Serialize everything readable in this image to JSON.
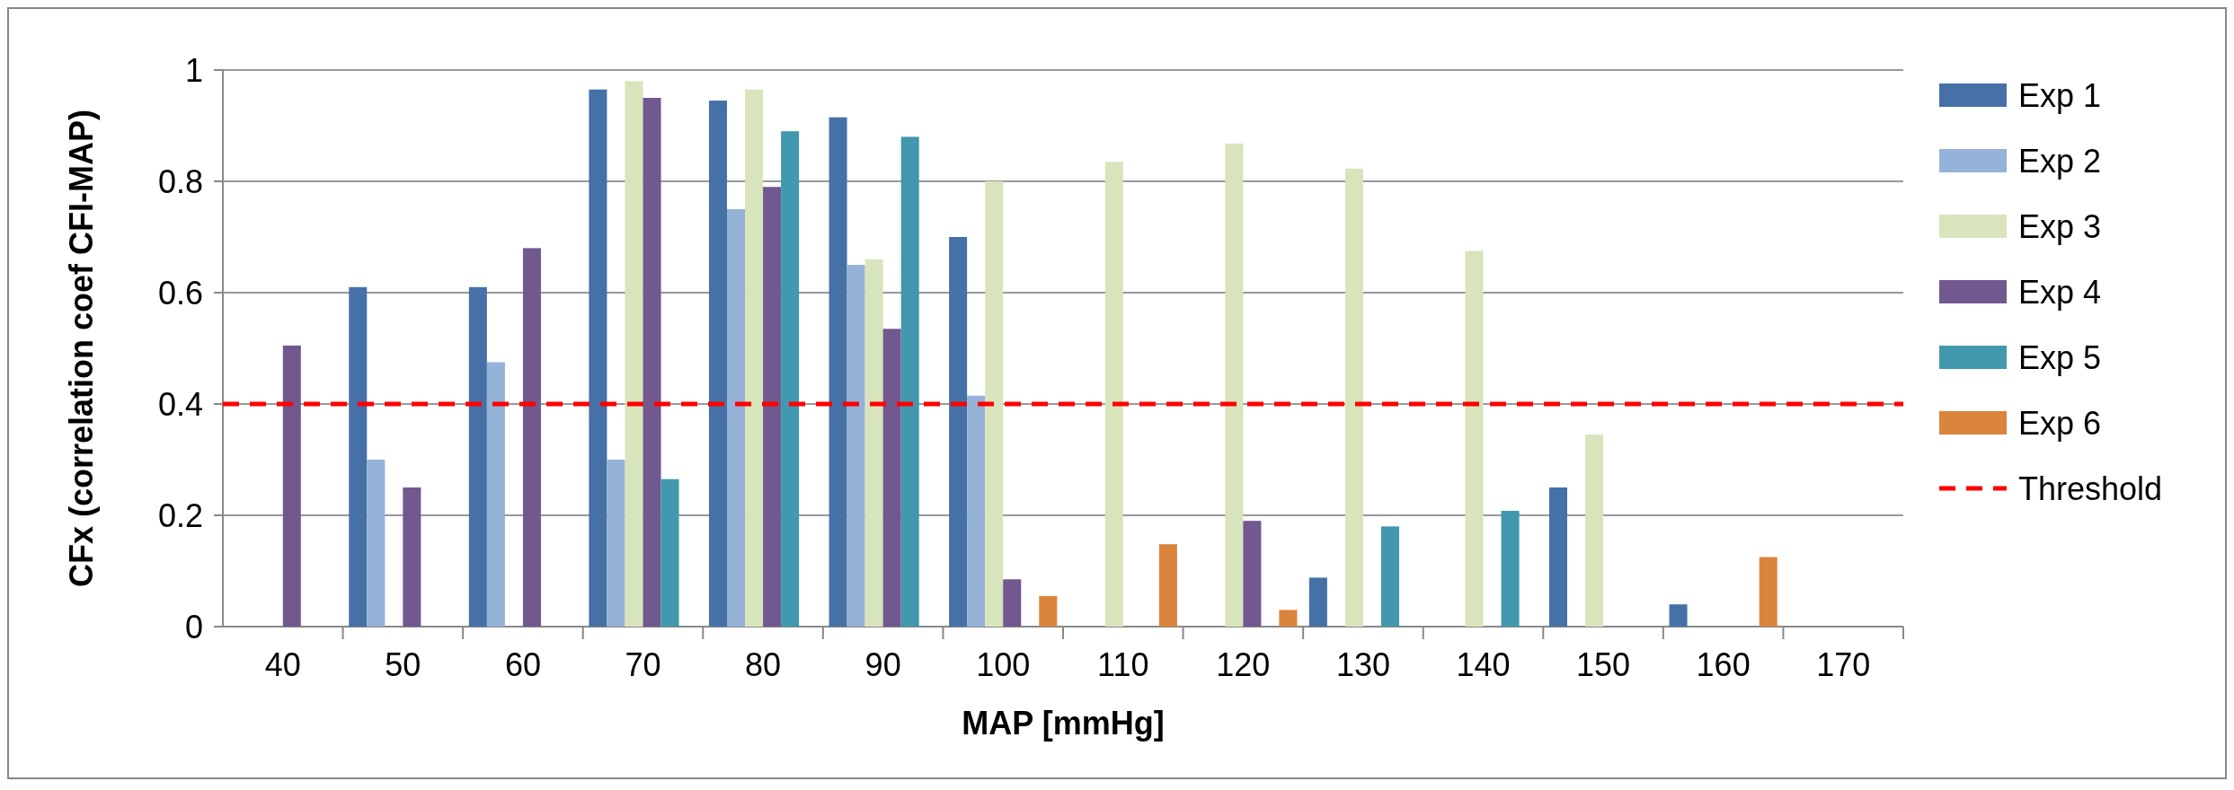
{
  "chart_data": {
    "type": "bar",
    "xlabel": "MAP [mmHg]",
    "ylabel": "CFx (correlation coef CFI-MAP)",
    "categories": [
      "40",
      "50",
      "60",
      "70",
      "80",
      "90",
      "100",
      "110",
      "120",
      "130",
      "140",
      "150",
      "160",
      "170"
    ],
    "series": [
      {
        "name": "Exp 1",
        "color": "#4571a7",
        "values": [
          null,
          0.61,
          0.61,
          0.965,
          0.945,
          0.915,
          0.7,
          null,
          null,
          0.088,
          0,
          0.25,
          0.04,
          0
        ]
      },
      {
        "name": "Exp 2",
        "color": "#95b2d8",
        "values": [
          null,
          0.3,
          0.475,
          0.3,
          0.75,
          0.65,
          0.415,
          0,
          null,
          null,
          null,
          null,
          null,
          null
        ]
      },
      {
        "name": "Exp 3",
        "color": "#d8e4bc",
        "values": [
          null,
          null,
          null,
          0.98,
          0.965,
          0.66,
          0.8,
          0.835,
          0.868,
          0.823,
          0.675,
          0.345,
          0,
          0
        ]
      },
      {
        "name": "Exp 4",
        "color": "#71588f",
        "values": [
          0.505,
          0.25,
          0.68,
          0.95,
          0.79,
          0.535,
          0.085,
          0,
          0.19,
          null,
          null,
          null,
          null,
          null
        ]
      },
      {
        "name": "Exp 5",
        "color": "#4198af",
        "values": [
          null,
          null,
          null,
          0.265,
          0.89,
          0.88,
          null,
          null,
          0,
          0.18,
          0.208,
          0,
          0,
          0
        ]
      },
      {
        "name": "Exp 6",
        "color": "#db843d",
        "values": [
          null,
          null,
          null,
          null,
          null,
          0,
          0.055,
          0.148,
          0.03,
          0,
          0,
          0,
          0.125,
          0
        ]
      }
    ],
    "ylim": [
      0,
      1
    ],
    "yticks": [
      0,
      {
        "value": 0.2,
        "label": "0.2"
      },
      {
        "value": 0.4,
        "label": "0.4"
      },
      {
        "value": 0.6,
        "label": "0.6"
      },
      {
        "value": 0.8,
        "label": "0.8"
      },
      1
    ],
    "ref_lines": [
      {
        "axis": "y",
        "value": 0.4,
        "label": "Threshold",
        "color": "#ff0000",
        "line_style": "dashed"
      }
    ],
    "grid": "y",
    "legend": "right"
  }
}
